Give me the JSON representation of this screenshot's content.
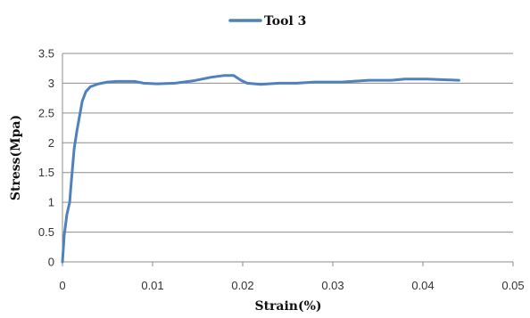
{
  "chart_data": {
    "type": "line",
    "title": "",
    "xlabel": "Strain(%)",
    "ylabel": "Stress(Mpa)",
    "xlim": [
      0,
      0.05
    ],
    "ylim": [
      0,
      3.5
    ],
    "x_ticks": [
      "0",
      "0.01",
      "0.02",
      "0.03",
      "0.04",
      "0.05"
    ],
    "y_ticks": [
      "0",
      "0.5",
      "1",
      "1.5",
      "2",
      "2.5",
      "3",
      "3.5"
    ],
    "grid": "horizontal",
    "legend_position": "top-center",
    "series": [
      {
        "name": "Tool 3",
        "color": "#4f81bd",
        "points": [
          [
            0.0,
            0.0
          ],
          [
            0.0002,
            0.45
          ],
          [
            0.0005,
            0.8
          ],
          [
            0.0008,
            1.0
          ],
          [
            0.0009,
            1.2
          ],
          [
            0.0011,
            1.55
          ],
          [
            0.0013,
            1.9
          ],
          [
            0.0016,
            2.2
          ],
          [
            0.0019,
            2.45
          ],
          [
            0.0022,
            2.7
          ],
          [
            0.0026,
            2.86
          ],
          [
            0.0031,
            2.94
          ],
          [
            0.004,
            2.99
          ],
          [
            0.005,
            3.02
          ],
          [
            0.006,
            3.03
          ],
          [
            0.008,
            3.03
          ],
          [
            0.009,
            3.0
          ],
          [
            0.0105,
            2.99
          ],
          [
            0.0125,
            3.0
          ],
          [
            0.0145,
            3.04
          ],
          [
            0.0165,
            3.1
          ],
          [
            0.018,
            3.13
          ],
          [
            0.019,
            3.13
          ],
          [
            0.0198,
            3.05
          ],
          [
            0.0205,
            3.0
          ],
          [
            0.022,
            2.98
          ],
          [
            0.024,
            3.0
          ],
          [
            0.026,
            3.0
          ],
          [
            0.028,
            3.02
          ],
          [
            0.031,
            3.02
          ],
          [
            0.034,
            3.05
          ],
          [
            0.0365,
            3.05
          ],
          [
            0.038,
            3.07
          ],
          [
            0.0405,
            3.07
          ],
          [
            0.042,
            3.06
          ],
          [
            0.044,
            3.05
          ]
        ]
      }
    ]
  }
}
